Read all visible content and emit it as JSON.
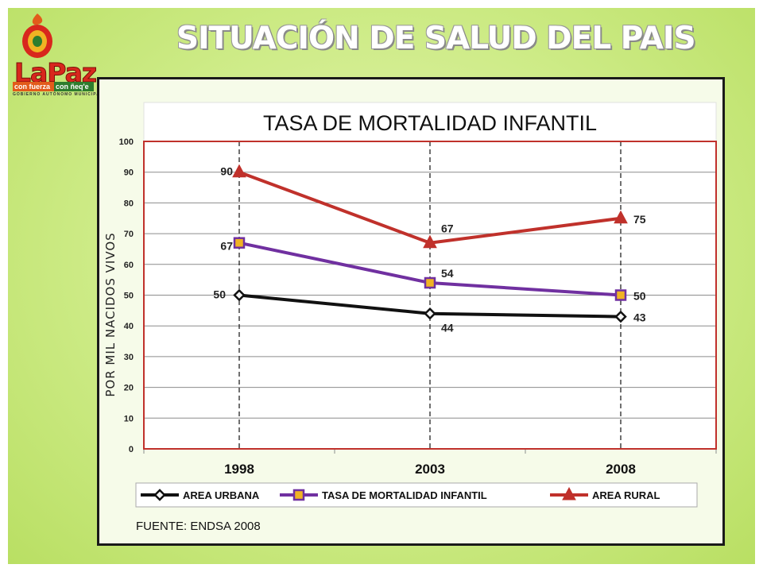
{
  "page": {
    "title": "SITUACIÓN DE SALUD DEL PAIS",
    "source": "FUENTE: ENDSA 2008"
  },
  "logo": {
    "wordmark": "LaPaz",
    "slogan_left": "con fuerza",
    "slogan_right": "con ñeq'e",
    "caption": "GOBIERNO AUTÓNOMO MUNICIPAL"
  },
  "colors": {
    "urban": "#111111",
    "tmi": "#7030a0",
    "rural": "#c0312b",
    "plot_border": "#c0312b",
    "marker_fill": "#f0b323"
  },
  "chart_data": {
    "type": "line",
    "title": "TASA DE MORTALIDAD INFANTIL",
    "xlabel": "",
    "ylabel": "POR MIL NACIDOS  VIVOS",
    "categories": [
      "1998",
      "2003",
      "2008"
    ],
    "ylim": [
      0,
      100
    ],
    "yticks": [
      0,
      10,
      20,
      30,
      40,
      50,
      60,
      70,
      80,
      90,
      100
    ],
    "grid": true,
    "legend_position": "bottom",
    "series": [
      {
        "name": "AREA URBANA",
        "values": [
          50,
          44,
          43
        ],
        "marker": "diamond",
        "color": "#111111"
      },
      {
        "name": "TASA DE MORTALIDAD INFANTIL",
        "values": [
          67,
          54,
          50
        ],
        "marker": "square",
        "color": "#7030a0"
      },
      {
        "name": "AREA RURAL",
        "values": [
          90,
          67,
          75
        ],
        "marker": "triangle",
        "color": "#c0312b"
      }
    ]
  }
}
